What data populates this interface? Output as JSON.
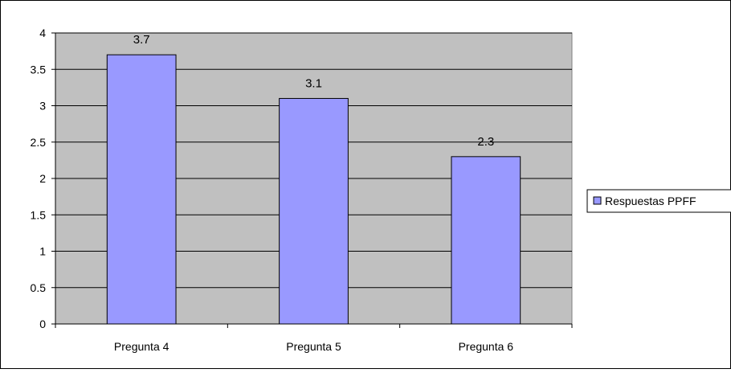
{
  "chart_data": {
    "type": "bar",
    "categories": [
      "Pregunta 4",
      "Pregunta 5",
      "Pregunta 6"
    ],
    "series": [
      {
        "name": "Respuestas PPFF",
        "values": [
          3.7,
          3.1,
          2.3
        ]
      }
    ],
    "data_labels": [
      "3.7",
      "3.1",
      "2.3"
    ],
    "y_ticks": [
      "0",
      "0.5",
      "1",
      "1.5",
      "2",
      "2.5",
      "3",
      "3.5",
      "4"
    ],
    "ylim": [
      0,
      4
    ],
    "grid": true,
    "legend_position": "right",
    "colors": {
      "bar_fill": "#9999ff",
      "bar_stroke": "#000000",
      "plot_background": "#c0c0c0",
      "gridline": "#000000"
    }
  }
}
